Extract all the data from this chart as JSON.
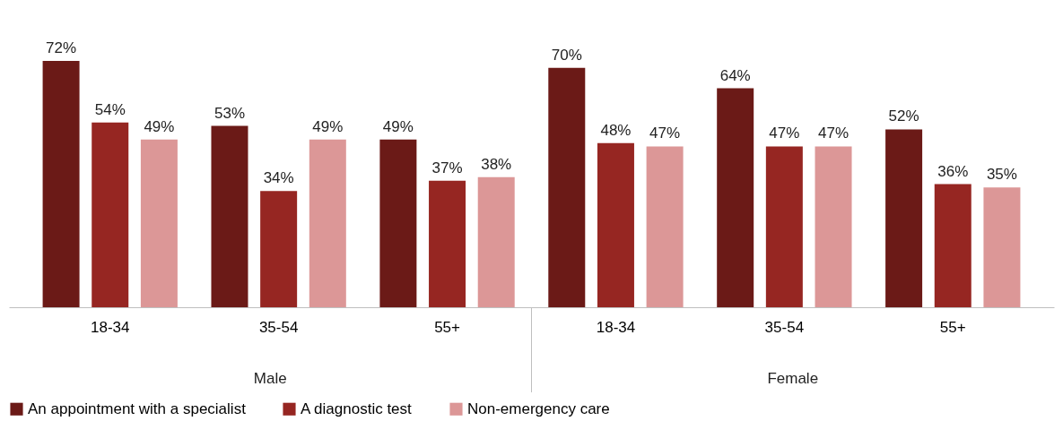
{
  "chart_data": {
    "type": "bar",
    "categories": [
      "18-34",
      "35-54",
      "55+",
      "18-34",
      "35-54",
      "55+"
    ],
    "series": [
      {
        "name": "An appointment with a specialist",
        "color": "#6b1a17",
        "values": [
          72,
          53,
          49,
          70,
          64,
          52
        ],
        "value_labels": [
          "72%",
          "53%",
          "49%",
          "70%",
          "64%",
          "52%"
        ]
      },
      {
        "name": "A diagnostic test",
        "color": "#962622",
        "values": [
          54,
          34,
          37,
          48,
          47,
          36
        ],
        "value_labels": [
          "54%",
          "34%",
          "37%",
          "48%",
          "47%",
          "36%"
        ]
      },
      {
        "name": "Non-emergency care",
        "color": "#dc9797",
        "values": [
          49,
          49,
          38,
          47,
          47,
          35
        ],
        "value_labels": [
          "49%",
          "49%",
          "38%",
          "47%",
          "47%",
          "35%"
        ]
      }
    ],
    "annotations": [
      "Male",
      "Female"
    ],
    "legend": "bottom",
    "grid": false
  }
}
